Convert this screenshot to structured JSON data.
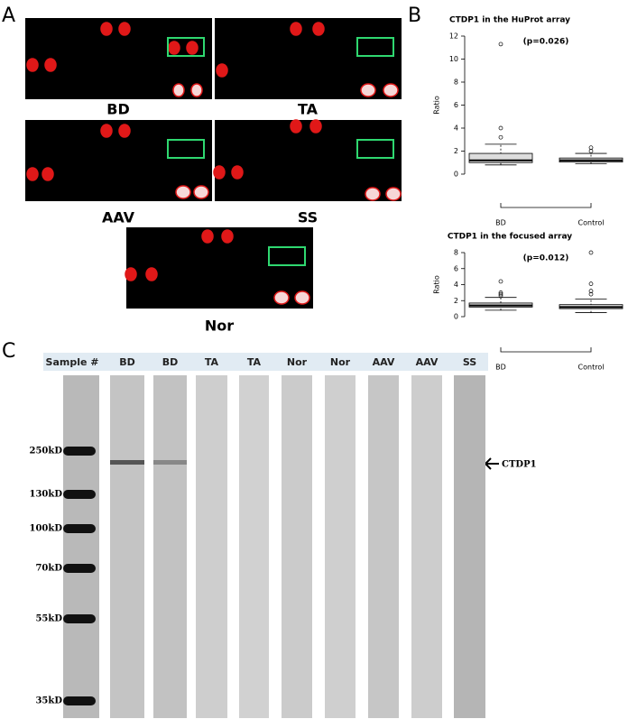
{
  "panel_labels": [
    "A",
    "B",
    "C"
  ],
  "arrays": [
    {
      "label": "BD"
    },
    {
      "label": "TA"
    },
    {
      "label": "AAV"
    },
    {
      "label": "SS"
    },
    {
      "label": "Nor"
    }
  ],
  "box_plots": [
    {
      "title": "CTDP1 in the HuProt array",
      "annotation": "(p=0.026)",
      "y_label": "Ratio",
      "ylim": [
        0,
        12
      ],
      "yticks": [
        0,
        2,
        4,
        6,
        8,
        10,
        12
      ],
      "groups": [
        {
          "name": "BD",
          "whisker_low": 0.8,
          "q1": 1.0,
          "median": 1.2,
          "q3": 1.8,
          "whisker_high": 2.6,
          "outliers": [
            3.2,
            4.0,
            11.3
          ]
        },
        {
          "name": "Control",
          "whisker_low": 0.9,
          "q1": 1.05,
          "median": 1.2,
          "q3": 1.4,
          "whisker_high": 1.8,
          "outliers": [
            2.0,
            2.3
          ]
        }
      ]
    },
    {
      "title": "CTDP1 in the focused array",
      "annotation": "(p=0.012)",
      "y_label": "Ratio",
      "ylim": [
        0,
        8
      ],
      "yticks": [
        0,
        2,
        4,
        6,
        8
      ],
      "groups": [
        {
          "name": "BD",
          "whisker_low": 0.8,
          "q1": 1.2,
          "median": 1.4,
          "q3": 1.7,
          "whisker_high": 2.4,
          "outliers": [
            2.6,
            2.8,
            3.0,
            4.4
          ]
        },
        {
          "name": "Control",
          "whisker_low": 0.5,
          "q1": 1.0,
          "median": 1.2,
          "q3": 1.5,
          "whisker_high": 2.2,
          "outliers": [
            2.8,
            3.2,
            4.1,
            8.0
          ]
        }
      ]
    }
  ],
  "blot": {
    "headers": [
      "Sample #",
      "BD",
      "BD",
      "TA",
      "TA",
      "Nor",
      "Nor",
      "AAV",
      "AAV",
      "SS"
    ],
    "markers": [
      "250kD",
      "130kD",
      "100kD",
      "70kD",
      "55kD",
      "35kD"
    ],
    "target": "CTDP1"
  }
}
